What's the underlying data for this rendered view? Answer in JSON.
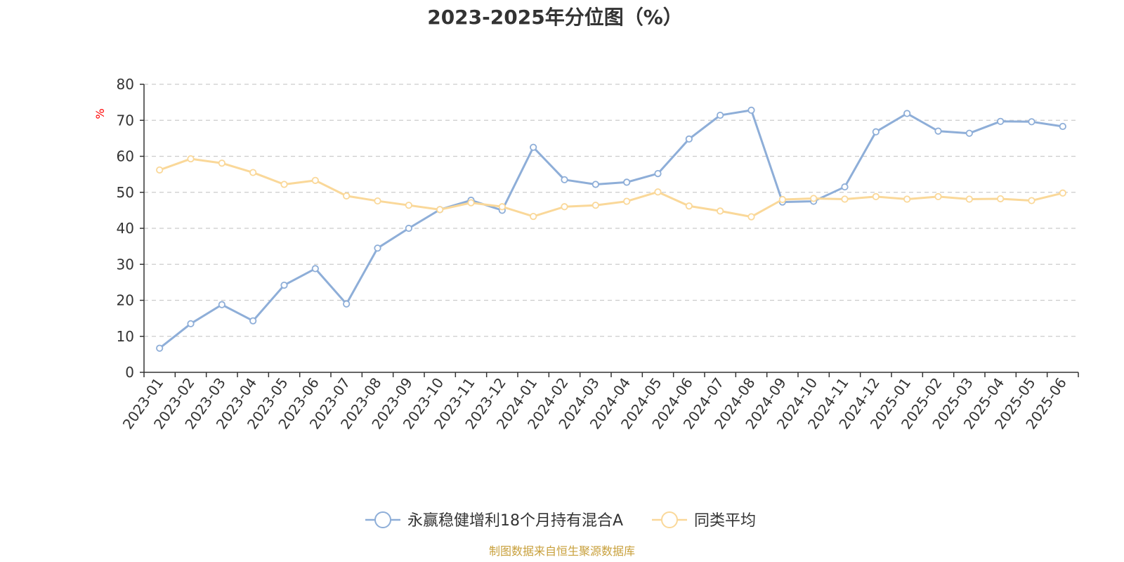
{
  "chart_data": {
    "type": "line",
    "title": "2023-2025年分位图（%）",
    "ylabel": "%",
    "ylim": [
      0,
      80
    ],
    "yticks": [
      0,
      10,
      20,
      30,
      40,
      50,
      60,
      70,
      80
    ],
    "grid": true,
    "legend_position": "bottom-center",
    "categories": [
      "2023-01",
      "2023-02",
      "2023-03",
      "2023-04",
      "2023-05",
      "2023-06",
      "2023-07",
      "2023-08",
      "2023-09",
      "2023-10",
      "2023-11",
      "2023-12",
      "2024-01",
      "2024-02",
      "2024-03",
      "2024-04",
      "2024-05",
      "2024-06",
      "2024-07",
      "2024-08",
      "2024-09",
      "2024-10",
      "2024-11",
      "2024-12",
      "2025-01",
      "2025-02",
      "2025-03",
      "2025-04",
      "2025-05",
      "2025-06"
    ],
    "series": [
      {
        "name": "永赢稳健增利18个月持有混合A",
        "color": "#8eaed8",
        "values": [
          6.7,
          13.5,
          18.8,
          14.3,
          24.2,
          28.8,
          19.0,
          34.5,
          40.0,
          45.2,
          47.8,
          45.0,
          62.5,
          53.5,
          52.2,
          52.8,
          55.2,
          64.8,
          71.4,
          72.8,
          47.3,
          47.5,
          51.5,
          66.8,
          71.9,
          67.0,
          66.4,
          69.7,
          69.6,
          68.3
        ]
      },
      {
        "name": "同类平均",
        "color": "#fad899",
        "values": [
          56.2,
          59.3,
          58.1,
          55.5,
          52.2,
          53.3,
          49.0,
          47.6,
          46.4,
          45.2,
          47.1,
          46.0,
          43.3,
          46.0,
          46.4,
          47.5,
          50.1,
          46.2,
          44.8,
          43.2,
          48.0,
          48.3,
          48.1,
          48.8,
          48.1,
          48.8,
          48.1,
          48.2,
          47.7,
          49.8
        ]
      }
    ]
  },
  "source_text": "制图数据来自恒生聚源数据库",
  "colors": {
    "axis": "#333333",
    "grid": "#cccccc",
    "ylabel": "#ff0000",
    "source": "#c8a03c"
  }
}
